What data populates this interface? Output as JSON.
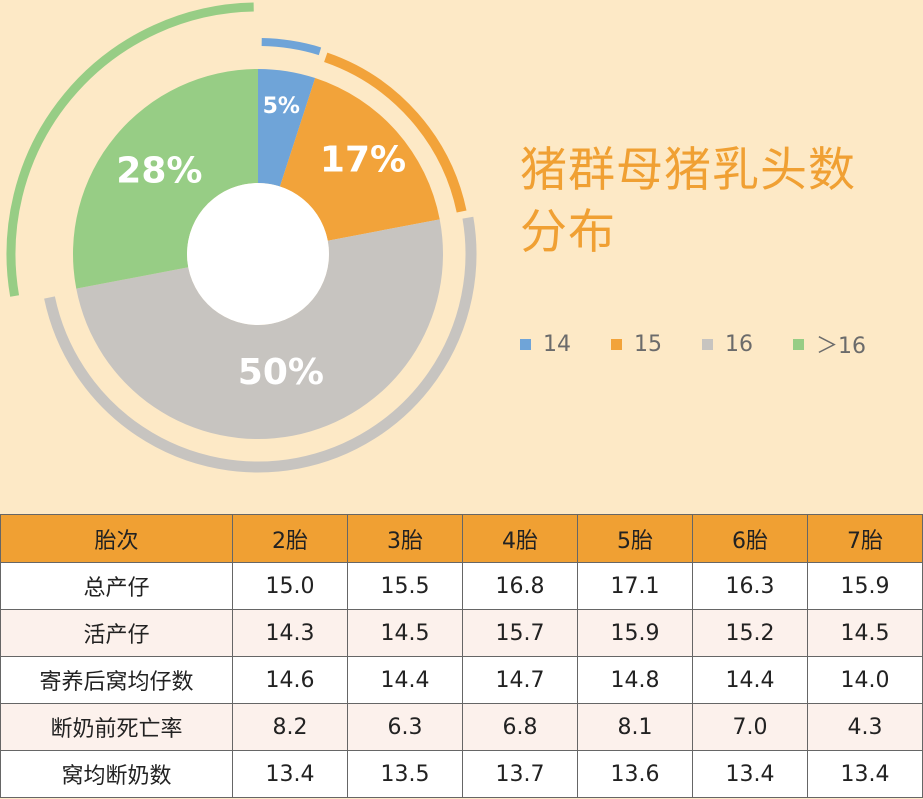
{
  "title": "猪群母猪乳头数分布",
  "chart_data": {
    "type": "pie",
    "subtype": "donut",
    "categories": [
      "14",
      "15",
      "16",
      "＞16"
    ],
    "values": [
      5,
      17,
      50,
      28
    ],
    "labels": [
      "5%",
      "17%",
      "50%",
      "28%"
    ],
    "colors": [
      "#6fa4d8",
      "#f2a33a",
      "#c7c4c0",
      "#97cd85"
    ],
    "legend_position": "right"
  },
  "legend": [
    {
      "label": "14",
      "color": "#6fa4d8"
    },
    {
      "label": "15",
      "color": "#f2a33a"
    },
    {
      "label": "16",
      "color": "#c7c4c0"
    },
    {
      "label": "＞16",
      "color": "#97cd85"
    }
  ],
  "table": {
    "headers": [
      "胎次",
      "2胎",
      "3胎",
      "4胎",
      "5胎",
      "6胎",
      "7胎"
    ],
    "rows": [
      [
        "总产仔",
        "15.0",
        "15.5",
        "16.8",
        "17.1",
        "16.3",
        "15.9"
      ],
      [
        "活产仔",
        "14.3",
        "14.5",
        "15.7",
        "15.9",
        "15.2",
        "14.5"
      ],
      [
        "寄养后窝均仔数",
        "14.6",
        "14.4",
        "14.7",
        "14.8",
        "14.4",
        "14.0"
      ],
      [
        "断奶前死亡率",
        "8.2",
        "6.3",
        "6.8",
        "8.1",
        "7.0",
        "4.3"
      ],
      [
        "窝均断奶数",
        "13.4",
        "13.5",
        "13.7",
        "13.6",
        "13.4",
        "13.4"
      ]
    ]
  }
}
